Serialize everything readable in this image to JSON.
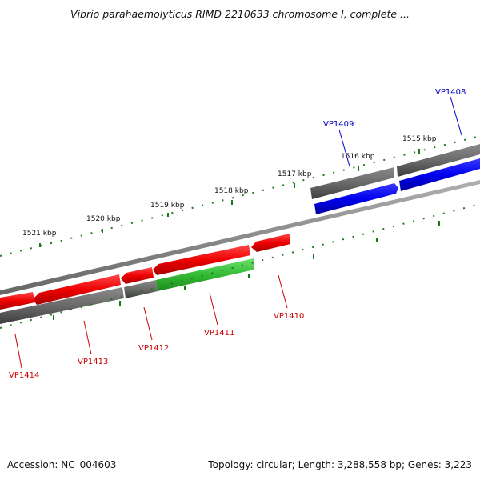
{
  "title": "Vibrio parahaemolyticus RIMD 2210633 chromosome I, complete ...",
  "footer": {
    "accession": "Accession: NC_004603",
    "summary": "Topology: circular; Length: 3,288,558 bp; Genes: 3,223"
  },
  "colors": {
    "ruler_ticks": "#1a7a1a",
    "forward_gene": "#0000dd",
    "reverse_gene": "#ee0000",
    "highlight_gene": "#33bb33",
    "gene_track": "#555555",
    "backbone": "#888888",
    "label_forward": "#0000cc",
    "label_reverse": "#cc0000"
  },
  "ruler_labels": [
    "1515 kbp",
    "1516 kbp",
    "1517 kbp",
    "1518 kbp",
    "1519 kbp",
    "1520 kbp",
    "1521 kbp"
  ],
  "genes": {
    "forward": [
      "VP1408",
      "VP1409"
    ],
    "reverse": [
      "VP1410",
      "VP1411",
      "VP1412",
      "VP1413",
      "VP1414"
    ],
    "highlighted": "VP1411"
  }
}
